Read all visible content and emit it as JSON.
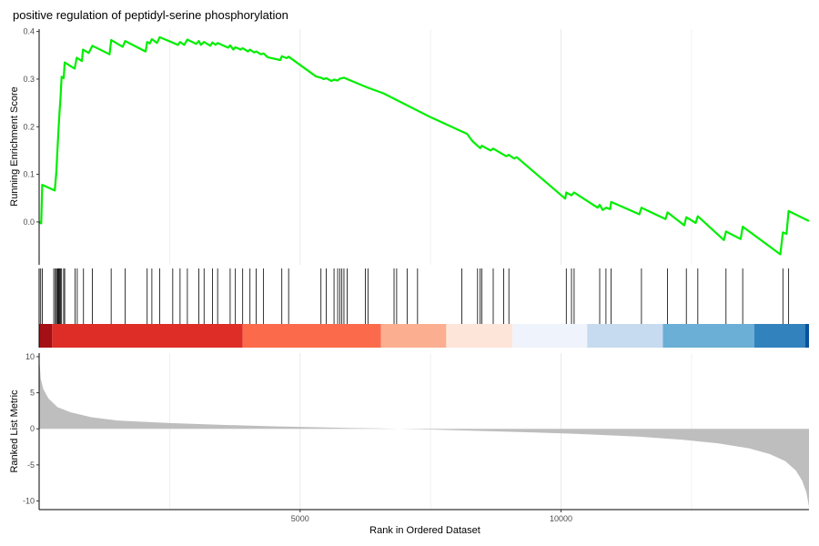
{
  "chart_data": {
    "type": "line",
    "title": "positive regulation of peptidyl-serine phosphorylation",
    "xlabel": "Rank in Ordered Dataset",
    "x_ticks": [
      5000,
      10000
    ],
    "x_range": [
      0,
      14750
    ],
    "grid": "vertical-only",
    "panels": {
      "enrichment": {
        "ylabel": "Running Enrichment Score",
        "ylim": [
          -0.09,
          0.405
        ],
        "y_ticks": [
          0.0,
          0.1,
          0.2,
          0.3,
          0.4
        ],
        "y_tick_labels": [
          "0.0",
          "0.1",
          "0.2",
          "0.3",
          "0.4"
        ],
        "line_color": "#00ee00",
        "points": [
          [
            0,
            0.0
          ],
          [
            40,
            -0.003
          ],
          [
            60,
            0.078
          ],
          [
            300,
            0.066
          ],
          [
            330,
            0.105
          ],
          [
            350,
            0.15
          ],
          [
            370,
            0.19
          ],
          [
            390,
            0.23
          ],
          [
            410,
            0.26
          ],
          [
            430,
            0.305
          ],
          [
            470,
            0.302
          ],
          [
            490,
            0.335
          ],
          [
            680,
            0.322
          ],
          [
            720,
            0.345
          ],
          [
            820,
            0.338
          ],
          [
            840,
            0.362
          ],
          [
            950,
            0.355
          ],
          [
            1020,
            0.37
          ],
          [
            1350,
            0.352
          ],
          [
            1380,
            0.382
          ],
          [
            1600,
            0.368
          ],
          [
            1650,
            0.38
          ],
          [
            2040,
            0.358
          ],
          [
            2070,
            0.378
          ],
          [
            2120,
            0.375
          ],
          [
            2160,
            0.384
          ],
          [
            2260,
            0.376
          ],
          [
            2310,
            0.388
          ],
          [
            2660,
            0.372
          ],
          [
            2700,
            0.378
          ],
          [
            2780,
            0.372
          ],
          [
            2840,
            0.383
          ],
          [
            3010,
            0.374
          ],
          [
            3060,
            0.38
          ],
          [
            3100,
            0.372
          ],
          [
            3160,
            0.378
          ],
          [
            3280,
            0.37
          ],
          [
            3320,
            0.377
          ],
          [
            3380,
            0.372
          ],
          [
            3420,
            0.376
          ],
          [
            3620,
            0.366
          ],
          [
            3660,
            0.371
          ],
          [
            3720,
            0.362
          ],
          [
            3760,
            0.367
          ],
          [
            3860,
            0.362
          ],
          [
            3900,
            0.365
          ],
          [
            4000,
            0.358
          ],
          [
            4040,
            0.362
          ],
          [
            4120,
            0.356
          ],
          [
            4160,
            0.358
          ],
          [
            4250,
            0.352
          ],
          [
            4300,
            0.354
          ],
          [
            4380,
            0.346
          ],
          [
            4620,
            0.34
          ],
          [
            4650,
            0.348
          ],
          [
            4740,
            0.344
          ],
          [
            4780,
            0.347
          ],
          [
            5300,
            0.306
          ],
          [
            5400,
            0.303
          ],
          [
            5450,
            0.3
          ],
          [
            5500,
            0.302
          ],
          [
            5600,
            0.296
          ],
          [
            5650,
            0.299
          ],
          [
            5720,
            0.297
          ],
          [
            5760,
            0.301
          ],
          [
            5840,
            0.303
          ],
          [
            5900,
            0.3
          ],
          [
            6300,
            0.282
          ],
          [
            6600,
            0.27
          ],
          [
            7500,
            0.22
          ],
          [
            7900,
            0.2
          ],
          [
            8200,
            0.185
          ],
          [
            8300,
            0.17
          ],
          [
            8450,
            0.155
          ],
          [
            8480,
            0.16
          ],
          [
            8650,
            0.15
          ],
          [
            8700,
            0.154
          ],
          [
            8950,
            0.138
          ],
          [
            9000,
            0.141
          ],
          [
            9100,
            0.133
          ],
          [
            9150,
            0.136
          ],
          [
            10080,
            0.049
          ],
          [
            10100,
            0.062
          ],
          [
            10200,
            0.056
          ],
          [
            10250,
            0.062
          ],
          [
            10700,
            0.03
          ],
          [
            10740,
            0.036
          ],
          [
            10800,
            0.025
          ],
          [
            10860,
            0.03
          ],
          [
            10940,
            0.027
          ],
          [
            10960,
            0.042
          ],
          [
            11500,
            0.016
          ],
          [
            11540,
            0.03
          ],
          [
            12000,
            0.006
          ],
          [
            12040,
            0.02
          ],
          [
            12360,
            -0.007
          ],
          [
            12400,
            0.01
          ],
          [
            12580,
            -0.002
          ],
          [
            12620,
            0.012
          ],
          [
            13120,
            -0.038
          ],
          [
            13160,
            -0.02
          ],
          [
            13440,
            -0.036
          ],
          [
            13480,
            -0.01
          ],
          [
            14200,
            -0.068
          ],
          [
            14250,
            -0.022
          ],
          [
            14320,
            -0.025
          ],
          [
            14360,
            0.023
          ],
          [
            14750,
            0.002
          ]
        ]
      },
      "hits": {
        "line_color": "#000000",
        "positions": [
          30,
          60,
          280,
          310,
          330,
          350,
          365,
          380,
          395,
          410,
          430,
          470,
          490,
          690,
          730,
          850,
          1020,
          1380,
          1650,
          2070,
          2160,
          2310,
          2560,
          2700,
          2840,
          3060,
          3160,
          3320,
          3420,
          3660,
          3760,
          3900,
          4040,
          4160,
          4300,
          4650,
          4780,
          5400,
          5500,
          5650,
          5720,
          5760,
          5800,
          5840,
          5900,
          6250,
          6300,
          6800,
          6850,
          7050,
          7250,
          8100,
          8400,
          8450,
          8480,
          8700,
          8900,
          9000,
          10100,
          10200,
          10250,
          10740,
          10860,
          10960,
          11540,
          12040,
          12400,
          12620,
          13160,
          13480,
          14250,
          14360
        ]
      },
      "ranked_list": {
        "ylabel": "Ranked List Metric",
        "ylim": [
          -11.2,
          10.5
        ],
        "y_ticks": [
          -10,
          -5,
          0,
          5,
          10
        ],
        "y_tick_labels": [
          "-10",
          "-5",
          "0",
          "5",
          "10"
        ],
        "fill_color": "#bebebe",
        "points": [
          [
            0,
            10.0
          ],
          [
            30,
            7.0
          ],
          [
            80,
            5.5
          ],
          [
            180,
            4.2
          ],
          [
            350,
            3.0
          ],
          [
            600,
            2.3
          ],
          [
            1000,
            1.6
          ],
          [
            1500,
            1.15
          ],
          [
            2500,
            0.8
          ],
          [
            3500,
            0.55
          ],
          [
            4500,
            0.35
          ],
          [
            5500,
            0.18
          ],
          [
            6500,
            0.05
          ],
          [
            7500,
            -0.1
          ],
          [
            8500,
            -0.3
          ],
          [
            9500,
            -0.5
          ],
          [
            10500,
            -0.75
          ],
          [
            11500,
            -1.1
          ],
          [
            12300,
            -1.5
          ],
          [
            13000,
            -2.0
          ],
          [
            13600,
            -2.7
          ],
          [
            14000,
            -3.5
          ],
          [
            14300,
            -4.5
          ],
          [
            14500,
            -5.8
          ],
          [
            14620,
            -7.2
          ],
          [
            14700,
            -8.8
          ],
          [
            14750,
            -10.8
          ]
        ]
      },
      "heatmap": {
        "bands": [
          {
            "x0": 0,
            "x1": 250,
            "color": "#a50f15"
          },
          {
            "x0": 250,
            "x1": 3900,
            "color": "#de2d26"
          },
          {
            "x0": 3900,
            "x1": 6550,
            "color": "#fb6a4a"
          },
          {
            "x0": 6550,
            "x1": 7800,
            "color": "#fcae91"
          },
          {
            "x0": 7800,
            "x1": 9070,
            "color": "#fee5d9"
          },
          {
            "x0": 9070,
            "x1": 10500,
            "color": "#eff3fb"
          },
          {
            "x0": 10500,
            "x1": 11950,
            "color": "#c6dbef"
          },
          {
            "x0": 11950,
            "x1": 13700,
            "color": "#6baed6"
          },
          {
            "x0": 13700,
            "x1": 14680,
            "color": "#3182bd"
          },
          {
            "x0": 14680,
            "x1": 14750,
            "color": "#08519c"
          }
        ]
      }
    }
  }
}
